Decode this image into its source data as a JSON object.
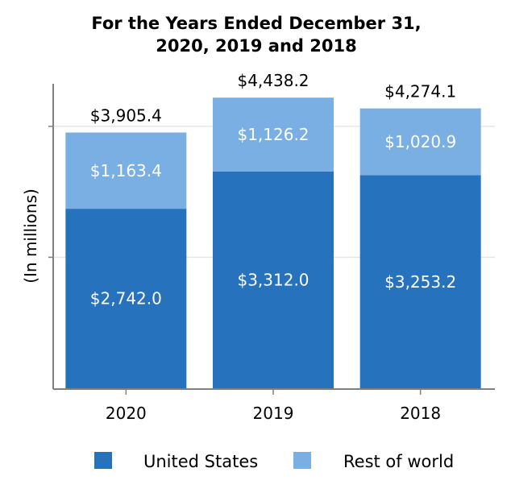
{
  "chart_data": {
    "type": "bar",
    "stacked": true,
    "title": "For the Years Ended December 31,\n2020, 2019 and 2018",
    "title_lines": [
      "For the Years Ended December 31,",
      "2020, 2019 and 2018"
    ],
    "ylabel": "(In millions)",
    "xlabel": "",
    "categories": [
      "2020",
      "2019",
      "2018"
    ],
    "series": [
      {
        "name": "United States",
        "values": [
          2742.0,
          3312.0,
          3253.2
        ],
        "labels": [
          "$2,742.0",
          "$3,312.0",
          "$3,253.2"
        ],
        "color": "#2672bd"
      },
      {
        "name": "Rest of world",
        "values": [
          1163.4,
          1126.2,
          1020.9
        ],
        "labels": [
          "$1,163.4",
          "$1,126.2",
          "$1,020.9"
        ],
        "color": "#7aafe3"
      }
    ],
    "totals": [
      3905.4,
      4438.2,
      4274.1
    ],
    "total_labels": [
      "$3,905.4",
      "$4,438.2",
      "$4,274.1"
    ],
    "ylim": [
      0,
      4650
    ],
    "ytick_values": [
      2000,
      4000
    ],
    "grid": true,
    "legend_position": "bottom"
  }
}
